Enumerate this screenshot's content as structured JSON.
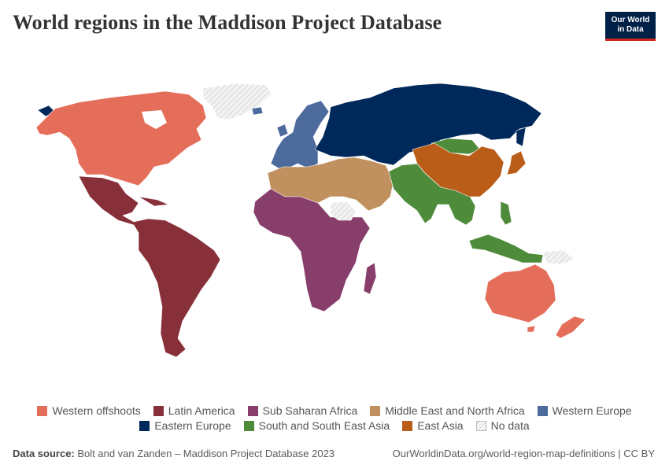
{
  "title": "World regions in the Maddison Project Database",
  "logo": {
    "line1": "Our World",
    "line2": "in Data"
  },
  "colors": {
    "western_offshoots": "#e56e5a",
    "latin_america": "#883039",
    "sub_saharan_africa": "#883e6a",
    "mena": "#c0915e",
    "western_europe": "#4c6a9c",
    "eastern_europe": "#00295b",
    "south_southeast_asia": "#4e8b3a",
    "east_asia": "#b95d18",
    "no_data": "#e6e6e6"
  },
  "legend": [
    {
      "key": "western_offshoots",
      "label": "Western offshoots"
    },
    {
      "key": "latin_america",
      "label": "Latin America"
    },
    {
      "key": "sub_saharan_africa",
      "label": "Sub Saharan Africa"
    },
    {
      "key": "mena",
      "label": "Middle East and North Africa"
    },
    {
      "key": "western_europe",
      "label": "Western Europe"
    },
    {
      "key": "eastern_europe",
      "label": "Eastern Europe"
    },
    {
      "key": "south_southeast_asia",
      "label": "South and South East Asia"
    },
    {
      "key": "east_asia",
      "label": "East Asia"
    },
    {
      "key": "no_data",
      "label": "No data"
    }
  ],
  "footer": {
    "source_label": "Data source:",
    "source_text": " Bolt and van Zanden – Maddison Project Database 2023",
    "link": "OurWorldinData.org/world-region-map-definitions | CC BY"
  }
}
